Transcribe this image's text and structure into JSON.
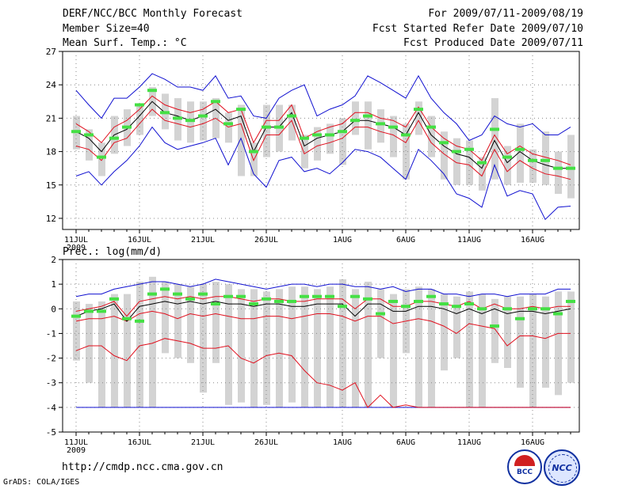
{
  "header": {
    "left": [
      "DERF/NCC/BCC Monthly Forecast",
      "Member Size=40",
      "Mean Surf. Temp.: °C"
    ],
    "right": [
      "For 2009/07/11-2009/08/19",
      "Fcst Started Refer Date 2009/07/10",
      "Fcst Produced Date 2009/07/11"
    ]
  },
  "footer": {
    "url": "http://cmdp.ncc.cma.gov.cn",
    "grads": "GrADS: COLA/IGES",
    "logo1": "BCC",
    "logo2": "NCC"
  },
  "colors": {
    "box": "#d3d3d3",
    "mean": "#000000",
    "inner": "#e0101e",
    "outer": "#1010d0",
    "marker": "#44e044",
    "grid": "#888888"
  },
  "chart_data": [
    {
      "type": "line",
      "title": "Mean Surf. Temp.: °C",
      "ylabel": "°C",
      "ylim": [
        11,
        27
      ],
      "yticks": [
        12,
        15,
        18,
        21,
        24,
        27
      ],
      "xlabels": [
        {
          "day": 1,
          "label": "11JUL"
        },
        {
          "day": 6,
          "label": "16JUL"
        },
        {
          "day": 11,
          "label": "21JUL"
        },
        {
          "day": 16,
          "label": "26JUL"
        },
        {
          "day": 22,
          "label": "1AUG"
        },
        {
          "day": 27,
          "label": "6AUG"
        },
        {
          "day": 32,
          "label": "11AUG"
        },
        {
          "day": 37,
          "label": "16AUG"
        }
      ],
      "year_label": "2009",
      "days": 40,
      "series": [
        {
          "name": "max",
          "values": [
            23.5,
            22.2,
            21.0,
            22.8,
            22.8,
            23.8,
            25.0,
            24.5,
            23.8,
            23.8,
            23.5,
            24.8,
            22.8,
            23.0,
            21.2,
            21.0,
            22.8,
            23.5,
            24.0,
            21.2,
            21.8,
            22.2,
            23.0,
            24.8,
            24.2,
            23.5,
            22.8,
            24.8,
            22.8,
            21.5,
            20.5,
            19.0,
            19.5,
            21.2,
            20.5,
            20.2,
            20.5,
            19.5,
            19.5,
            20.2
          ]
        },
        {
          "name": "upper",
          "values": [
            20.5,
            19.8,
            18.8,
            20.2,
            20.8,
            21.8,
            23.0,
            22.2,
            21.8,
            21.5,
            21.8,
            22.5,
            21.5,
            21.8,
            18.8,
            20.8,
            20.8,
            22.2,
            19.2,
            19.8,
            20.2,
            20.5,
            21.5,
            21.5,
            21.0,
            20.8,
            20.2,
            22.0,
            20.2,
            19.2,
            18.5,
            18.2,
            17.2,
            19.5,
            17.8,
            18.5,
            17.8,
            17.5,
            17.2,
            16.8
          ]
        },
        {
          "name": "mean",
          "values": [
            19.8,
            19.2,
            18.0,
            19.5,
            20.0,
            21.2,
            22.5,
            21.5,
            21.2,
            20.8,
            21.2,
            21.8,
            20.8,
            21.2,
            18.0,
            20.2,
            20.2,
            21.5,
            18.5,
            19.2,
            19.5,
            19.8,
            20.8,
            20.8,
            20.5,
            20.2,
            19.5,
            21.5,
            19.5,
            18.5,
            17.8,
            17.5,
            16.5,
            19.0,
            17.0,
            18.0,
            17.2,
            16.8,
            16.5,
            16.5
          ]
        },
        {
          "name": "lower",
          "values": [
            18.5,
            18.2,
            17.2,
            18.8,
            19.2,
            20.5,
            21.8,
            20.8,
            20.5,
            20.2,
            20.5,
            21.0,
            20.2,
            20.5,
            17.2,
            19.5,
            19.5,
            20.8,
            17.8,
            18.5,
            18.8,
            19.2,
            20.2,
            20.2,
            19.8,
            19.5,
            18.8,
            20.8,
            18.8,
            17.8,
            17.0,
            16.8,
            15.8,
            18.2,
            16.2,
            17.2,
            16.5,
            16.0,
            15.8,
            15.5
          ]
        },
        {
          "name": "min",
          "values": [
            15.8,
            16.2,
            15.0,
            16.2,
            17.2,
            18.5,
            20.2,
            18.8,
            18.2,
            18.5,
            18.8,
            19.2,
            16.8,
            19.2,
            16.0,
            14.8,
            17.2,
            17.5,
            16.2,
            16.5,
            16.0,
            17.0,
            18.2,
            18.0,
            17.5,
            16.5,
            15.5,
            18.2,
            17.2,
            16.0,
            14.2,
            13.8,
            13.0,
            16.8,
            14.0,
            14.5,
            14.2,
            11.9,
            13.0,
            13.1
          ]
        },
        {
          "name": "box_top",
          "values": [
            21.2,
            20.0,
            18.8,
            21.2,
            21.8,
            22.2,
            23.8,
            23.2,
            22.8,
            22.5,
            22.5,
            22.8,
            21.5,
            22.2,
            18.8,
            22.2,
            22.2,
            22.2,
            19.5,
            20.2,
            20.5,
            21.0,
            22.5,
            22.5,
            21.8,
            21.2,
            20.5,
            22.5,
            21.2,
            19.8,
            19.2,
            19.0,
            17.5,
            22.8,
            18.5,
            20.5,
            18.2,
            19.8,
            18.0,
            19.5
          ]
        },
        {
          "name": "box_bottom",
          "values": [
            18.2,
            17.2,
            15.8,
            17.8,
            18.5,
            19.5,
            21.2,
            20.0,
            19.0,
            18.8,
            19.0,
            19.2,
            18.8,
            15.8,
            15.8,
            17.5,
            18.0,
            19.0,
            16.5,
            17.2,
            17.8,
            16.8,
            19.5,
            18.2,
            18.8,
            17.5,
            15.5,
            19.5,
            17.5,
            15.5,
            15.0,
            15.0,
            14.5,
            15.5,
            15.0,
            15.2,
            15.2,
            15.0,
            14.2,
            13.8
          ]
        },
        {
          "name": "marker",
          "values": [
            19.8,
            19.5,
            17.5,
            19.2,
            20.2,
            22.2,
            23.5,
            21.5,
            21.0,
            20.8,
            21.2,
            22.5,
            20.5,
            21.8,
            18.0,
            20.2,
            20.2,
            21.2,
            19.2,
            19.5,
            19.5,
            19.8,
            20.8,
            21.2,
            20.5,
            20.2,
            19.5,
            21.8,
            20.2,
            18.8,
            18.0,
            18.2,
            17.0,
            20.0,
            17.5,
            18.2,
            17.2,
            17.2,
            16.5,
            16.5
          ]
        }
      ]
    },
    {
      "type": "line",
      "title": "Prec.: log(mm/d)",
      "ylabel": "log(mm/d)",
      "ylim": [
        -5,
        2
      ],
      "yticks": [
        -5,
        -4,
        -3,
        -2,
        -1,
        0,
        1,
        2
      ],
      "xlabels": [
        {
          "day": 1,
          "label": "11JUL"
        },
        {
          "day": 6,
          "label": "16JUL"
        },
        {
          "day": 11,
          "label": "21JUL"
        },
        {
          "day": 16,
          "label": "26JUL"
        },
        {
          "day": 22,
          "label": "1AUG"
        },
        {
          "day": 27,
          "label": "6AUG"
        },
        {
          "day": 32,
          "label": "11AUG"
        },
        {
          "day": 37,
          "label": "16AUG"
        }
      ],
      "year_label": "2009",
      "days": 40,
      "series": [
        {
          "name": "max",
          "values": [
            0.5,
            0.6,
            0.6,
            0.8,
            0.9,
            1.0,
            1.1,
            1.1,
            1.0,
            0.9,
            1.0,
            1.2,
            1.1,
            1.0,
            0.9,
            0.8,
            0.9,
            1.0,
            1.0,
            0.9,
            1.0,
            1.0,
            0.9,
            0.9,
            0.8,
            0.9,
            0.7,
            0.8,
            0.8,
            0.6,
            0.6,
            0.5,
            0.6,
            0.6,
            0.5,
            0.6,
            0.6,
            0.6,
            0.8,
            0.8
          ]
        },
        {
          "name": "upper",
          "values": [
            -0.1,
            0.0,
            0.1,
            0.3,
            -0.3,
            0.3,
            0.4,
            0.5,
            0.4,
            0.5,
            0.4,
            0.5,
            0.5,
            0.4,
            0.3,
            0.4,
            0.4,
            0.3,
            0.3,
            0.4,
            0.4,
            0.4,
            0.0,
            0.4,
            0.4,
            0.1,
            0.1,
            0.3,
            0.3,
            0.2,
            0.1,
            0.3,
            0.0,
            0.2,
            0.0,
            0.0,
            0.1,
            0.0,
            0.1,
            0.1
          ]
        },
        {
          "name": "mean",
          "values": [
            -0.3,
            -0.1,
            0.0,
            0.2,
            -0.5,
            0.1,
            0.2,
            0.3,
            0.2,
            0.3,
            0.2,
            0.3,
            0.2,
            0.2,
            0.1,
            0.2,
            0.2,
            0.1,
            0.1,
            0.2,
            0.2,
            0.2,
            -0.3,
            0.2,
            0.2,
            -0.1,
            -0.1,
            0.1,
            0.1,
            0.0,
            -0.2,
            0.0,
            -0.2,
            0.0,
            -0.2,
            -0.1,
            -0.1,
            -0.2,
            -0.1,
            0.0
          ]
        },
        {
          "name": "lower",
          "values": [
            -0.5,
            -0.4,
            -0.4,
            -0.3,
            -0.5,
            -0.2,
            -0.1,
            -0.2,
            -0.4,
            -0.2,
            -0.3,
            -0.2,
            -0.3,
            -0.4,
            -0.4,
            -0.3,
            -0.3,
            -0.4,
            -0.3,
            -0.2,
            -0.2,
            -0.3,
            -0.5,
            -0.3,
            -0.3,
            -0.6,
            -0.5,
            -0.4,
            -0.5,
            -0.7,
            -1.0,
            -0.6,
            -0.7,
            -0.8,
            -1.5,
            -1.1,
            -1.1,
            -1.2,
            -1.0,
            -1.0
          ]
        },
        {
          "name": "min",
          "values": [
            -1.7,
            -1.5,
            -1.5,
            -1.9,
            -2.1,
            -1.5,
            -1.4,
            -1.2,
            -1.3,
            -1.4,
            -1.6,
            -1.6,
            -1.5,
            -2.0,
            -2.2,
            -1.9,
            -1.8,
            -1.9,
            -2.5,
            -3.0,
            -3.1,
            -3.3,
            -3.0,
            -4.0,
            -3.5,
            -4.0,
            -3.9,
            -4.0,
            -4.0,
            -4.0,
            -4.0,
            -4.0,
            -4.0,
            -4.0,
            -4.0,
            -4.0,
            -4.0,
            -4.0,
            -4.0,
            -4.0
          ]
        },
        {
          "name": "floor",
          "values": [
            -4.0,
            -4.0,
            -4.0,
            -4.0,
            -4.0,
            -4.0,
            -4.0,
            -4.0,
            -4.0,
            -4.0,
            -4.0,
            -4.0,
            -4.0,
            -4.0,
            -4.0,
            -4.0,
            -4.0,
            -4.0,
            -4.0,
            -4.0,
            -4.0,
            -4.0,
            -4.0,
            -4.0,
            -4.0,
            -4.0,
            -4.0,
            -4.0,
            -4.0,
            -4.0,
            -4.0,
            -4.0,
            -4.0,
            -4.0,
            -4.0,
            -4.0,
            -4.0,
            -4.0,
            -4.0,
            -4.0
          ]
        },
        {
          "name": "box_top",
          "values": [
            0.3,
            0.2,
            0.3,
            0.6,
            0.6,
            1.1,
            1.3,
            1.1,
            1.0,
            0.9,
            1.0,
            1.1,
            1.0,
            0.8,
            0.8,
            0.7,
            0.8,
            0.9,
            0.9,
            0.8,
            0.9,
            1.2,
            0.8,
            1.1,
            0.8,
            0.6,
            0.8,
            0.9,
            0.8,
            0.6,
            0.5,
            0.7,
            0.6,
            0.4,
            0.5,
            0.5,
            0.6,
            0.5,
            0.7,
            0.7
          ]
        },
        {
          "name": "box_bottom",
          "values": [
            -2.1,
            -3.0,
            -4.0,
            -4.0,
            -4.0,
            -4.0,
            -4.0,
            -1.8,
            -2.0,
            -2.2,
            -3.4,
            -2.2,
            -3.9,
            -3.8,
            -4.0,
            -3.9,
            -4.0,
            -3.8,
            -4.0,
            -4.0,
            -4.0,
            -4.0,
            -4.0,
            -4.0,
            -2.0,
            -4.0,
            -1.8,
            -4.0,
            -4.0,
            -2.5,
            -2.0,
            -4.0,
            -4.0,
            -2.2,
            -2.4,
            -3.2,
            -4.0,
            -3.2,
            -3.5,
            -3.0
          ]
        },
        {
          "name": "marker",
          "values": [
            -0.3,
            -0.1,
            -0.1,
            0.4,
            -0.4,
            -0.5,
            0.6,
            0.8,
            0.6,
            0.4,
            0.6,
            0.2,
            0.5,
            0.5,
            0.2,
            0.4,
            0.3,
            0.3,
            0.5,
            0.5,
            0.5,
            0.1,
            0.5,
            0.4,
            -0.2,
            0.3,
            0.1,
            0.3,
            0.5,
            0.2,
            0.1,
            0.2,
            0.0,
            -0.7,
            0.0,
            -0.4,
            0.0,
            0.0,
            -0.2,
            0.3
          ]
        }
      ]
    }
  ]
}
